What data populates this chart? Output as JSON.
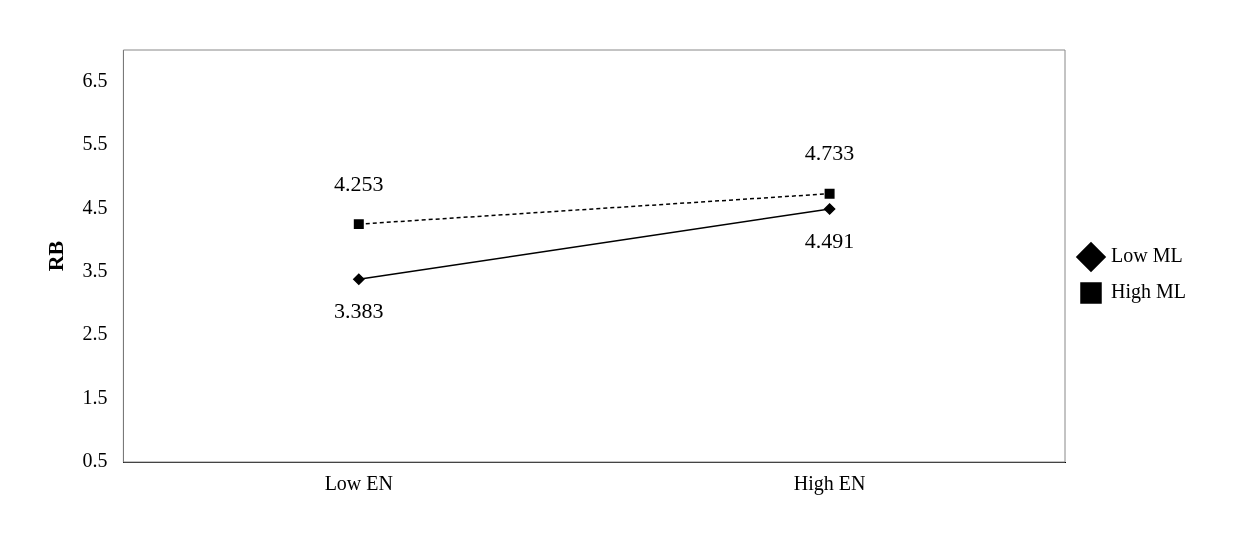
{
  "chart_data": {
    "type": "line",
    "ylabel": "RB",
    "categories": [
      "Low EN",
      "High EN"
    ],
    "series": [
      {
        "name": "Low ML",
        "color": "#000000",
        "values": [
          3.383,
          4.491
        ],
        "marker": "diamond",
        "line_style": "solid"
      },
      {
        "name": "High ML",
        "color": "#000000",
        "values": [
          4.253,
          4.733
        ],
        "marker": "square",
        "line_style": "dashed"
      }
    ],
    "ylim": [
      0.5,
      7
    ],
    "yticks": [
      0.5,
      1.5,
      2.5,
      3.5,
      4.5,
      5.5,
      6.5
    ],
    "grid": false,
    "legend": "right",
    "data_labels": true
  }
}
